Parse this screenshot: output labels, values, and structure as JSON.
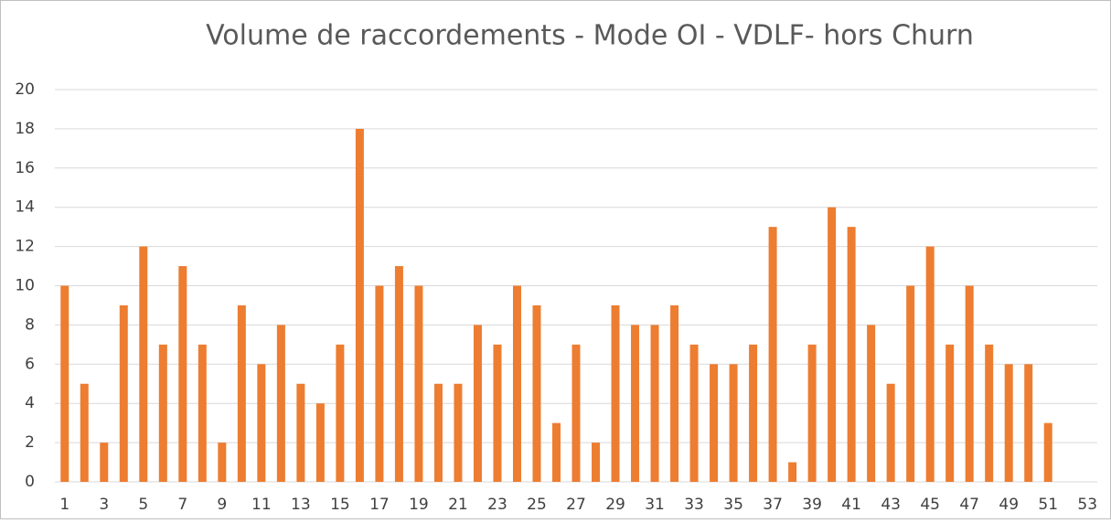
{
  "chart_data": {
    "type": "bar",
    "title": "Volume de raccordements - Mode OI - VDLF- hors Churn",
    "categories": [
      "1",
      null,
      "3",
      null,
      "5",
      null,
      "7",
      null,
      "9",
      null,
      "11",
      null,
      "13",
      null,
      "15",
      null,
      "17",
      null,
      "19",
      null,
      "21",
      null,
      "23",
      null,
      "25",
      null,
      "27",
      null,
      "29",
      null,
      "31",
      null,
      "33",
      null,
      "35",
      null,
      "37",
      null,
      "39",
      null,
      "41",
      null,
      "43",
      null,
      "45",
      null,
      "47",
      null,
      "49",
      null,
      "51",
      null,
      "53"
    ],
    "values": [
      10,
      5,
      2,
      9,
      12,
      7,
      11,
      7,
      2,
      9,
      6,
      8,
      5,
      4,
      7,
      18,
      10,
      11,
      10,
      5,
      5,
      8,
      7,
      10,
      9,
      3,
      7,
      2,
      9,
      8,
      8,
      9,
      7,
      6,
      6,
      7,
      13,
      1,
      7,
      14,
      13,
      8,
      5,
      10,
      12,
      7,
      10,
      7,
      6,
      6,
      3,
      null,
      null
    ],
    "color": "#ed7d31",
    "ylim": [
      0,
      20
    ],
    "yticks": [
      0,
      2,
      4,
      6,
      8,
      10,
      12,
      14,
      16,
      18,
      20
    ],
    "grid": true
  }
}
